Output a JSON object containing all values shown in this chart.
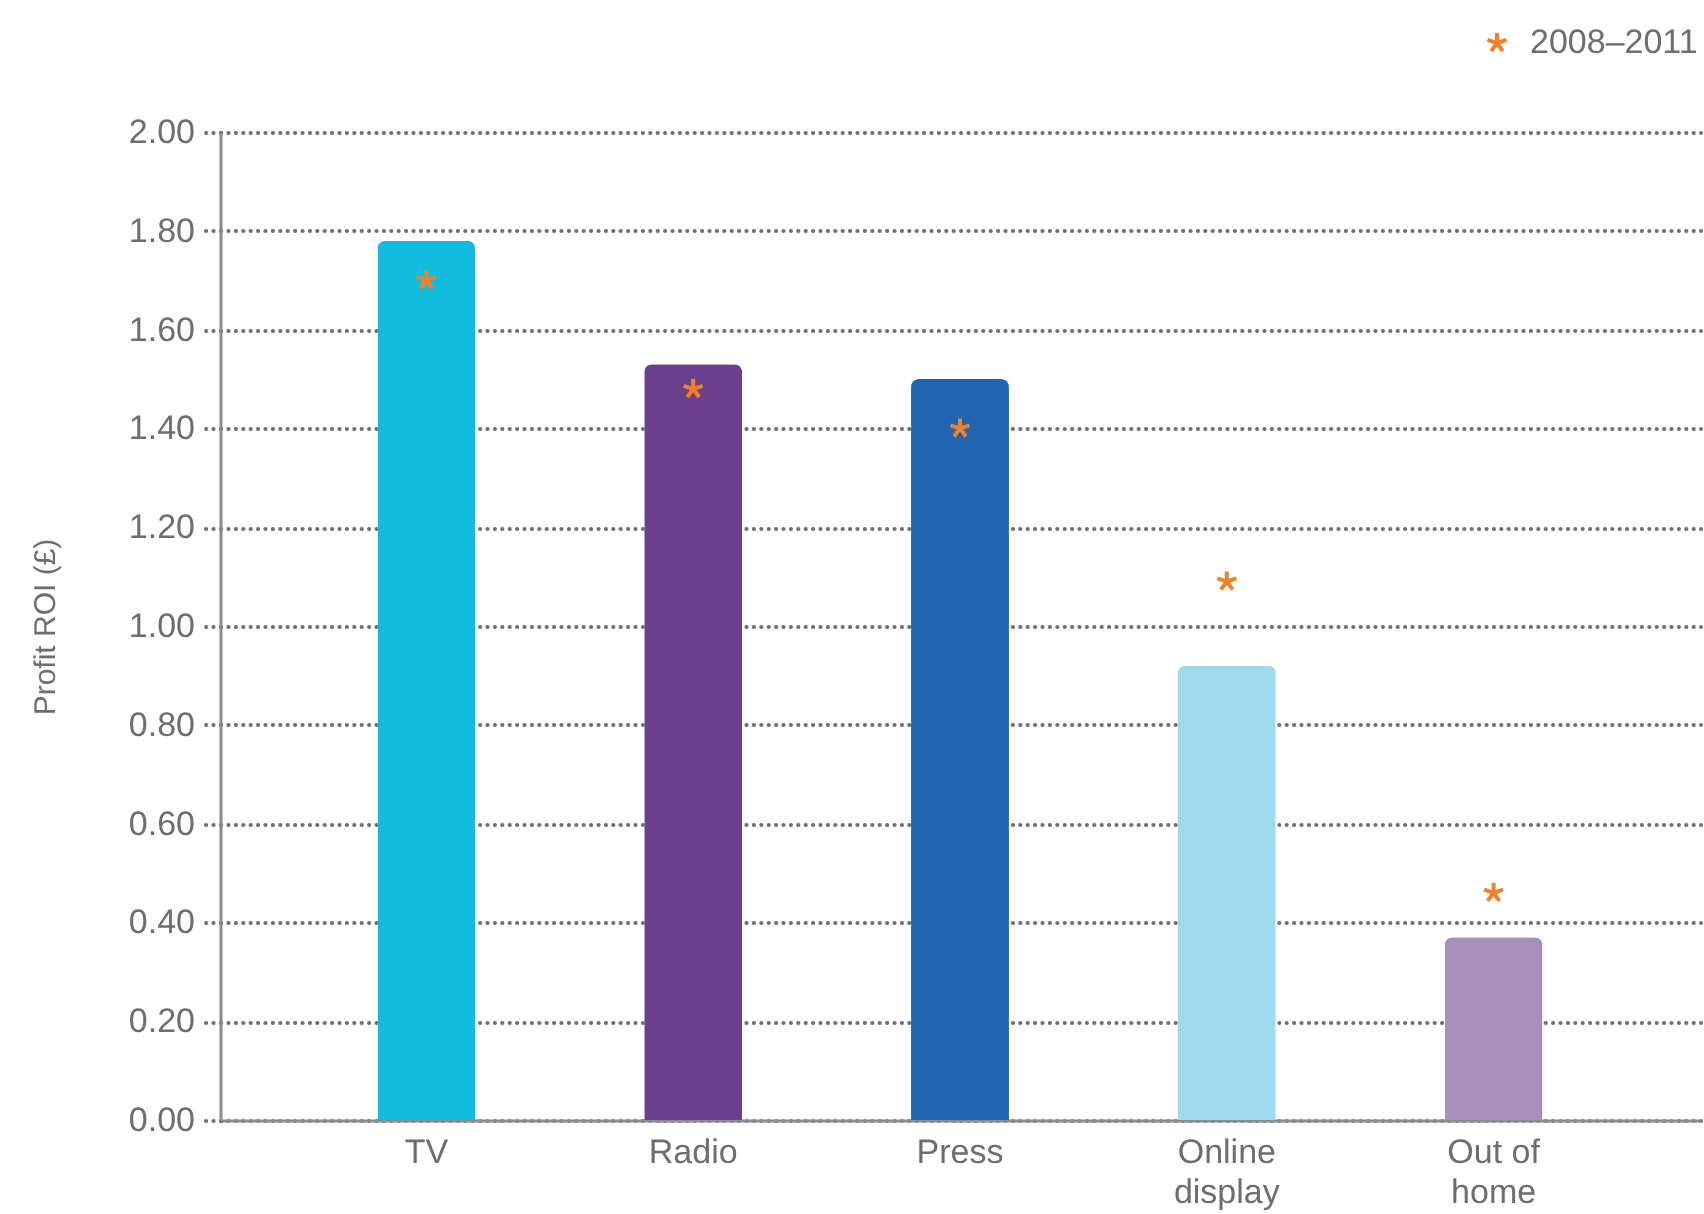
{
  "chart_data": {
    "type": "bar",
    "ylabel": "Profit ROI (£)",
    "categories": [
      "TV",
      "Radio",
      "Press",
      "Online display",
      "Out of home"
    ],
    "series": [
      {
        "colors": [
          "#12bcdf",
          "#6c3f8c",
          "#2165b0",
          "#9ed9ee",
          "#a78fbb"
        ],
        "values": [
          1.78,
          1.53,
          1.5,
          0.92,
          0.37
        ]
      },
      {
        "type": "scatter",
        "name": "2008–2011",
        "color": "#f2802a",
        "marker": "star",
        "values": [
          1.7,
          1.48,
          1.4,
          1.09,
          0.46
        ]
      }
    ],
    "ylim": [
      0,
      2
    ],
    "yticks": [
      {
        "value": 0,
        "label": "0.00"
      },
      {
        "value": 0.2,
        "label": "0.20"
      },
      {
        "value": 0.4,
        "label": "0.40"
      },
      {
        "value": 0.6,
        "label": "0.60"
      },
      {
        "value": 0.8,
        "label": "0.80"
      },
      {
        "value": 1,
        "label": "1.00"
      },
      {
        "value": 1.2,
        "label": "1.20"
      },
      {
        "value": 1.4,
        "label": "1.40"
      },
      {
        "value": 1.6,
        "label": "1.60"
      },
      {
        "value": 1.8,
        "label": "1.80"
      },
      {
        "value": 2,
        "label": "2.00"
      }
    ],
    "grid": "y",
    "legend": "top right"
  }
}
